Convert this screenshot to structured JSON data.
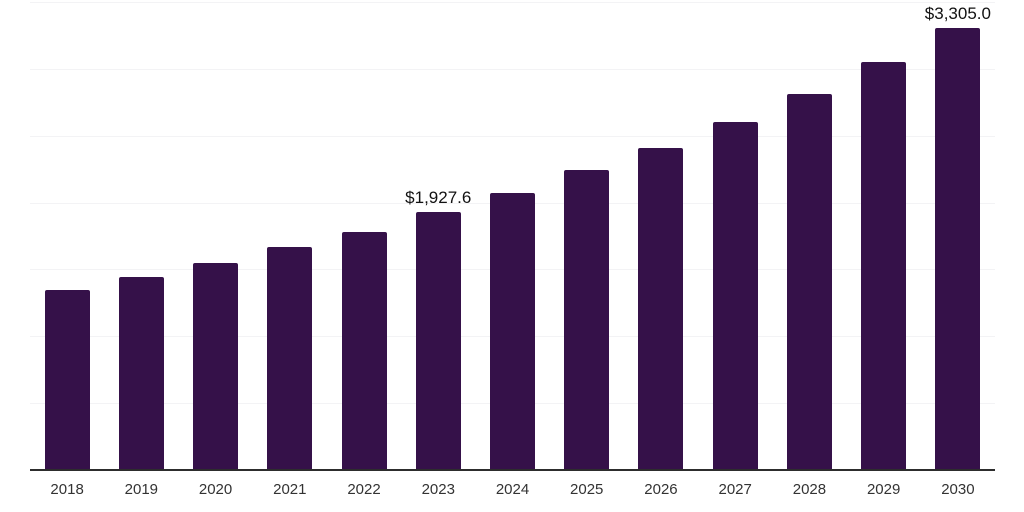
{
  "chart_data": {
    "type": "bar",
    "title": "",
    "xlabel": "",
    "ylabel": "",
    "categories": [
      "2018",
      "2019",
      "2020",
      "2021",
      "2022",
      "2023",
      "2024",
      "2025",
      "2026",
      "2027",
      "2028",
      "2029",
      "2030"
    ],
    "values": [
      1345,
      1445,
      1550,
      1670,
      1780,
      1927.6,
      2075,
      2240,
      2410,
      2605,
      2815,
      3050,
      3305
    ],
    "data_labels": [
      {
        "index": 5,
        "category": "2023",
        "text": "$1,927.6"
      },
      {
        "index": 12,
        "category": "2030",
        "text": "$3,305.0"
      }
    ],
    "ylim": [
      0,
      3500
    ],
    "y_gridline_step": 500,
    "grid": "horizontal-only",
    "y_axis_tick_labels_visible": false,
    "legend": "none",
    "bar_color": "#351149",
    "gridline_color": "#f3f3f5",
    "axis_line_color": "#2d2d2d",
    "tick_label_color": "#333333",
    "data_label_color": "#121212"
  }
}
